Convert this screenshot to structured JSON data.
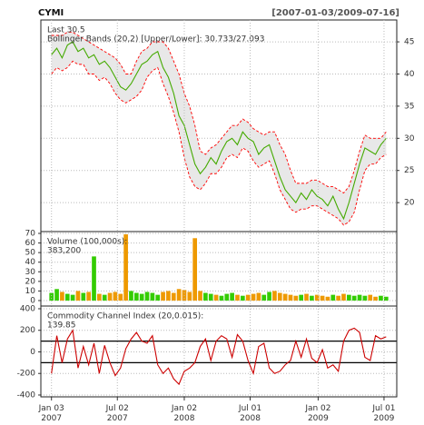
{
  "chart_data": [
    {
      "type": "line",
      "title": "CYMI",
      "subtitle": "[2007-01-03/2009-07-16]",
      "y_axis": "right",
      "grid": true,
      "band_fill": "#e8e8e8",
      "annotations": [
        {
          "text": "Last 30.5",
          "color": "#33bb00"
        },
        {
          "text": "Bollinger Bands (20,2) [Upper/Lower]: 30.733/27.093",
          "color": "#dd0000"
        }
      ],
      "xlim": [
        -20,
        650
      ],
      "ylim": [
        15.5,
        48.4
      ],
      "yticks": [
        20,
        25,
        30,
        35,
        40,
        45
      ],
      "x": [
        0,
        10,
        20,
        30,
        40,
        50,
        60,
        70,
        80,
        90,
        100,
        110,
        120,
        130,
        140,
        150,
        160,
        170,
        180,
        190,
        200,
        210,
        220,
        230,
        240,
        250,
        260,
        270,
        280,
        290,
        300,
        310,
        320,
        330,
        340,
        350,
        360,
        370,
        380,
        390,
        400,
        410,
        420,
        430,
        440,
        450,
        460,
        470,
        480,
        490,
        500,
        510,
        520,
        530,
        540,
        550,
        560,
        570,
        580,
        590,
        600,
        610,
        620,
        630
      ],
      "series": [
        {
          "color": "#ff0000",
          "dash": true,
          "values": [
            46,
            46,
            46,
            46.5,
            46.5,
            46,
            45.5,
            45,
            44.5,
            44,
            43.5,
            43,
            42.5,
            41.5,
            40,
            40,
            42,
            43.5,
            44,
            45,
            45,
            45,
            44,
            42,
            40,
            37,
            35,
            32,
            28,
            27.5,
            28.5,
            29,
            30,
            31,
            32,
            32,
            33,
            32.5,
            31.5,
            31,
            30.5,
            31,
            31,
            29,
            27.5,
            25,
            23,
            23,
            23,
            23.5,
            23.5,
            23,
            22.5,
            22.5,
            22,
            21.5,
            22.5,
            25,
            28,
            30.5,
            30,
            30,
            30,
            31
          ]
        },
        {
          "color": "#ff0000",
          "dash": true,
          "values": [
            40,
            41,
            40.5,
            41,
            42,
            41.5,
            41.5,
            40,
            40,
            39,
            39.5,
            38.5,
            37,
            36,
            35.5,
            36,
            36.5,
            37.5,
            39.5,
            40.5,
            41,
            38.5,
            36.5,
            34,
            31,
            27,
            24,
            22.5,
            22,
            23,
            24.5,
            24.5,
            25.5,
            27,
            27.5,
            27,
            28.5,
            28,
            26.5,
            25.5,
            26,
            26.5,
            24.5,
            22,
            20.5,
            19,
            18.5,
            19,
            19,
            19.5,
            19.5,
            19,
            18.5,
            18,
            17.5,
            16.5,
            17,
            18.5,
            22,
            25,
            26,
            26,
            27,
            27.5
          ]
        },
        {
          "color": "#44aa00",
          "dash": false,
          "values": [
            43,
            44,
            42.5,
            44.5,
            45,
            43.5,
            44,
            42.5,
            43,
            41.5,
            42,
            41,
            39.5,
            38,
            37.5,
            38.5,
            40,
            41.5,
            42,
            43,
            43.5,
            41,
            39.5,
            37,
            33.5,
            32,
            29,
            26,
            24.5,
            25.5,
            27,
            26,
            28,
            29.5,
            30,
            29,
            31,
            30,
            29.5,
            27.5,
            28.5,
            29,
            26.5,
            24,
            22,
            21,
            20,
            21.5,
            20.5,
            22,
            21,
            20.5,
            19.5,
            21,
            19,
            17.5,
            20,
            23,
            26,
            28.5,
            28,
            27.5,
            29,
            30
          ]
        }
      ]
    },
    {
      "type": "bar",
      "y_axis": "left",
      "up_color": "#33cc00",
      "down_color": "#ee9900",
      "annotations": [
        {
          "text": "Volume (100,000s):",
          "color": "#333333"
        },
        {
          "text": "383,200",
          "color": "#33bb00"
        }
      ],
      "xlim": [
        -20,
        650
      ],
      "ylim": [
        -5.7,
        71.9
      ],
      "yticks": [
        0,
        10,
        20,
        30,
        40,
        50,
        60,
        70
      ],
      "x": [
        0,
        10,
        20,
        30,
        40,
        50,
        60,
        70,
        80,
        90,
        100,
        110,
        120,
        130,
        140,
        150,
        160,
        170,
        180,
        190,
        200,
        210,
        220,
        230,
        240,
        250,
        260,
        270,
        280,
        290,
        300,
        310,
        320,
        330,
        340,
        350,
        360,
        370,
        380,
        390,
        400,
        410,
        420,
        430,
        440,
        450,
        460,
        470,
        480,
        490,
        500,
        510,
        520,
        530,
        540,
        550,
        560,
        570,
        580,
        590,
        600,
        610,
        620,
        630
      ],
      "values": [
        8,
        12,
        9,
        7,
        6,
        10,
        8,
        9,
        46,
        7,
        6,
        8,
        9,
        7,
        69,
        10,
        8,
        7,
        9,
        8,
        6,
        9,
        10,
        8,
        12,
        11,
        9,
        65,
        10,
        8,
        7,
        6,
        5,
        7,
        8,
        6,
        5,
        6,
        7,
        8,
        6,
        9,
        10,
        8,
        7,
        6,
        5,
        6,
        7,
        5,
        6,
        5,
        4,
        6,
        5,
        7,
        6,
        5,
        6,
        5,
        6,
        4,
        5,
        4
      ]
    },
    {
      "type": "line",
      "y_axis": "left",
      "ref_lines": [
        100,
        -100
      ],
      "annotations": [
        {
          "text": "Commodity Channel Index (20,0.015):",
          "color": "#333333"
        },
        {
          "text": "139.85",
          "color": "#dd0000"
        }
      ],
      "xlim": [
        -20,
        650
      ],
      "ylim": [
        -417,
        425
      ],
      "yticks": [
        -400,
        -200,
        0,
        200,
        400
      ],
      "xticks": [
        {
          "value": 0,
          "label": "Jan 03\n2007"
        },
        {
          "value": 124,
          "label": "Jul 02\n2007"
        },
        {
          "value": 250,
          "label": "Jan 02\n2008"
        },
        {
          "value": 374,
          "label": "Jul 01\n2008"
        },
        {
          "value": 502,
          "label": "Jan 02\n2009"
        },
        {
          "value": 626,
          "label": "Jul 01\n2009"
        }
      ],
      "x": [
        0,
        10,
        20,
        30,
        40,
        50,
        60,
        70,
        80,
        90,
        100,
        110,
        120,
        130,
        140,
        150,
        160,
        170,
        180,
        190,
        200,
        210,
        220,
        230,
        240,
        250,
        260,
        270,
        280,
        290,
        300,
        310,
        320,
        330,
        340,
        350,
        360,
        370,
        380,
        390,
        400,
        410,
        420,
        430,
        440,
        450,
        460,
        470,
        480,
        490,
        500,
        510,
        520,
        530,
        540,
        550,
        560,
        570,
        580,
        590,
        600,
        610,
        620,
        630
      ],
      "series": [
        {
          "color": "#cc0000",
          "dash": false,
          "values": [
            -200,
            150,
            -100,
            120,
            200,
            -150,
            50,
            -120,
            80,
            -200,
            60,
            -100,
            -220,
            -150,
            30,
            120,
            180,
            100,
            80,
            150,
            -120,
            -200,
            -150,
            -250,
            -300,
            -180,
            -150,
            -100,
            50,
            120,
            -80,
            100,
            150,
            120,
            -50,
            160,
            100,
            -80,
            -200,
            50,
            80,
            -150,
            -200,
            -180,
            -120,
            -80,
            100,
            -50,
            120,
            -60,
            -100,
            20,
            -150,
            -120,
            -180,
            100,
            200,
            220,
            180,
            -50,
            -80,
            150,
            120,
            140
          ]
        }
      ]
    }
  ]
}
